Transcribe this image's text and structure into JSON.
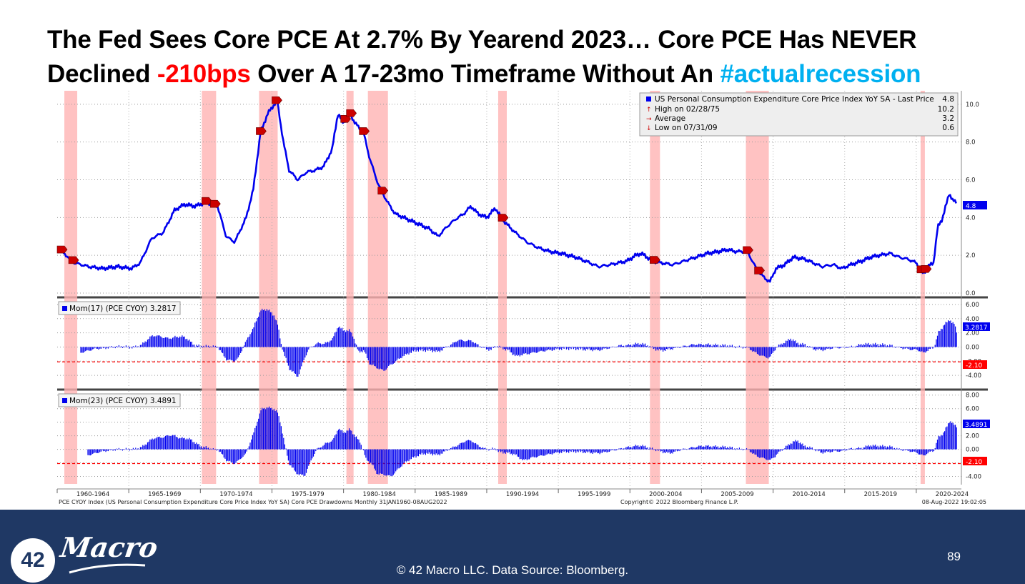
{
  "title": {
    "line1": "The Fed Sees Core PCE At 2.7% By Yearend 2023… Core PCE Has NEVER",
    "line2_start": "Declined ",
    "line2_negative": "-210bps",
    "line2_middle": " Over A 17-23mo Timeframe Without An ",
    "line2_hashtag": "#actualrecession"
  },
  "colors": {
    "series": "#0000ee",
    "recession": "#ffb3b3",
    "threshold": "#ff0000",
    "hashtag": "#00b0f0",
    "footer": "#1f3864"
  },
  "chart_data": [
    {
      "type": "line",
      "legend": {
        "series_name": "US Personal Consumption Expenditure Core Price Index YoY SA - Last Price",
        "last_price": "4.8",
        "high_label": "High on 02/28/75",
        "high_value": "10.2",
        "avg_label": "Average",
        "avg_value": "3.2",
        "low_label": "Low on 07/31/09",
        "low_value": "0.6"
      },
      "last_value_label": "4.8",
      "ylim": [
        0,
        10.6
      ],
      "yticks": [
        "0.0",
        "2.0",
        "4.0",
        "6.0",
        "8.0",
        "10.0"
      ],
      "x": [
        1960.0,
        1961.0,
        1962.0,
        1963.0,
        1964.0,
        1965.0,
        1965.6,
        1966.4,
        1967.2,
        1968.0,
        1968.7,
        1969.4,
        1970.2,
        1971.0,
        1971.6,
        1972.2,
        1973.0,
        1973.5,
        1974.0,
        1974.5,
        1975.16,
        1975.6,
        1976.0,
        1976.6,
        1977.2,
        1977.8,
        1978.4,
        1979.0,
        1979.4,
        1979.8,
        1980.2,
        1980.6,
        1981.2,
        1981.6,
        1982.2,
        1982.8,
        1983.4,
        1984.0,
        1984.6,
        1985.2,
        1985.8,
        1986.4,
        1987.0,
        1987.6,
        1988.2,
        1988.7,
        1989.2,
        1989.8,
        1990.4,
        1991.0,
        1991.8,
        1992.6,
        1993.4,
        1994.2,
        1995.0,
        1996.0,
        1997.0,
        1997.6,
        1998.4,
        1999.0,
        1999.6,
        2000.2,
        2000.6,
        2001.4,
        2002.0,
        2002.8,
        2003.6,
        2004.4,
        2005.2,
        2006.0,
        2006.6,
        2007.2,
        2008.0,
        2008.7,
        2009.2,
        2009.58,
        2010.0,
        2010.6,
        2011.2,
        2012.0,
        2012.6,
        2013.2,
        2014.0,
        2014.6,
        2015.2,
        2016.0,
        2016.6,
        2017.2,
        2018.0,
        2018.6,
        2019.2,
        2019.8,
        2020.3,
        2020.6,
        2021.0,
        2021.3,
        2021.6,
        2021.9,
        2022.1,
        2022.35,
        2022.6
      ],
      "y": [
        2.3,
        1.6,
        1.4,
        1.3,
        1.4,
        1.3,
        1.6,
        2.9,
        3.2,
        4.4,
        4.7,
        4.6,
        4.8,
        4.6,
        3.0,
        2.7,
        4.0,
        5.5,
        8.5,
        9.5,
        10.2,
        8.0,
        6.5,
        6.0,
        6.4,
        6.5,
        6.7,
        7.6,
        9.5,
        9.0,
        9.6,
        9.0,
        8.5,
        7.2,
        5.8,
        4.9,
        4.2,
        4.0,
        3.8,
        3.6,
        3.4,
        3.0,
        3.5,
        3.9,
        4.2,
        4.6,
        4.2,
        4.0,
        4.5,
        3.8,
        3.2,
        2.7,
        2.4,
        2.2,
        2.1,
        1.9,
        1.6,
        1.4,
        1.5,
        1.6,
        1.7,
        2.0,
        2.1,
        1.7,
        1.6,
        1.5,
        1.7,
        1.9,
        2.1,
        2.2,
        2.3,
        2.2,
        2.2,
        1.2,
        0.8,
        0.6,
        1.3,
        1.5,
        1.9,
        1.8,
        1.6,
        1.4,
        1.5,
        1.3,
        1.5,
        1.7,
        1.9,
        2.0,
        2.1,
        1.9,
        1.8,
        1.6,
        1.0,
        1.4,
        1.6,
        3.5,
        3.9,
        4.7,
        5.3,
        4.9,
        4.8
      ]
    },
    {
      "type": "bar",
      "legend": "Mom(17) (PCE CYOY) 3.2817",
      "last_value_label": "3.2817",
      "threshold_label": "-2.10",
      "ylim": [
        -5.5,
        6.6
      ],
      "yticks": [
        "6.00",
        "4.00",
        "2.00",
        "0.00",
        "-2.00",
        "-4.00"
      ]
    },
    {
      "type": "bar",
      "legend": "Mom(23) (PCE CYOY) 3.4891",
      "last_value_label": "3.4891",
      "threshold_label": "-2.10",
      "ylim": [
        -5.0,
        8.5
      ],
      "yticks": [
        "8.00",
        "6.00",
        "4.00",
        "2.00",
        "0.00",
        "-2.00",
        "-4.00"
      ]
    }
  ],
  "recessions": [
    [
      1960.3,
      1961.2
    ],
    [
      1969.9,
      1970.9
    ],
    [
      1973.9,
      1975.2
    ],
    [
      1980.0,
      1980.5
    ],
    [
      1981.5,
      1982.9
    ],
    [
      1990.6,
      1991.2
    ],
    [
      2001.2,
      2001.9
    ],
    [
      2007.9,
      2009.5
    ],
    [
      2020.1,
      2020.4
    ]
  ],
  "x_axis_labels": [
    "1960-1964",
    "1965-1969",
    "1970-1974",
    "1975-1979",
    "1980-1984",
    "1985-1989",
    "1990-1994",
    "1995-1999",
    "2000-2004",
    "2005-2009",
    "2010-2014",
    "2015-2019",
    "2020-2024"
  ],
  "source_line": "PCE CYOY Index (US Personal Consumption Expenditure Core Price Index YoY SA) Core PCE Drawdowns  Monthly 31JAN1960-08AUG2022",
  "copyright_line": "Copyright© 2022 Bloomberg Finance L.P.",
  "timestamp_line": "08-Aug-2022 19:02:05",
  "footer": {
    "logo_number": "42",
    "logo_word": "Macro",
    "credit": "© 42 Macro LLC. Data Source: Bloomberg.",
    "page_number": "89"
  }
}
